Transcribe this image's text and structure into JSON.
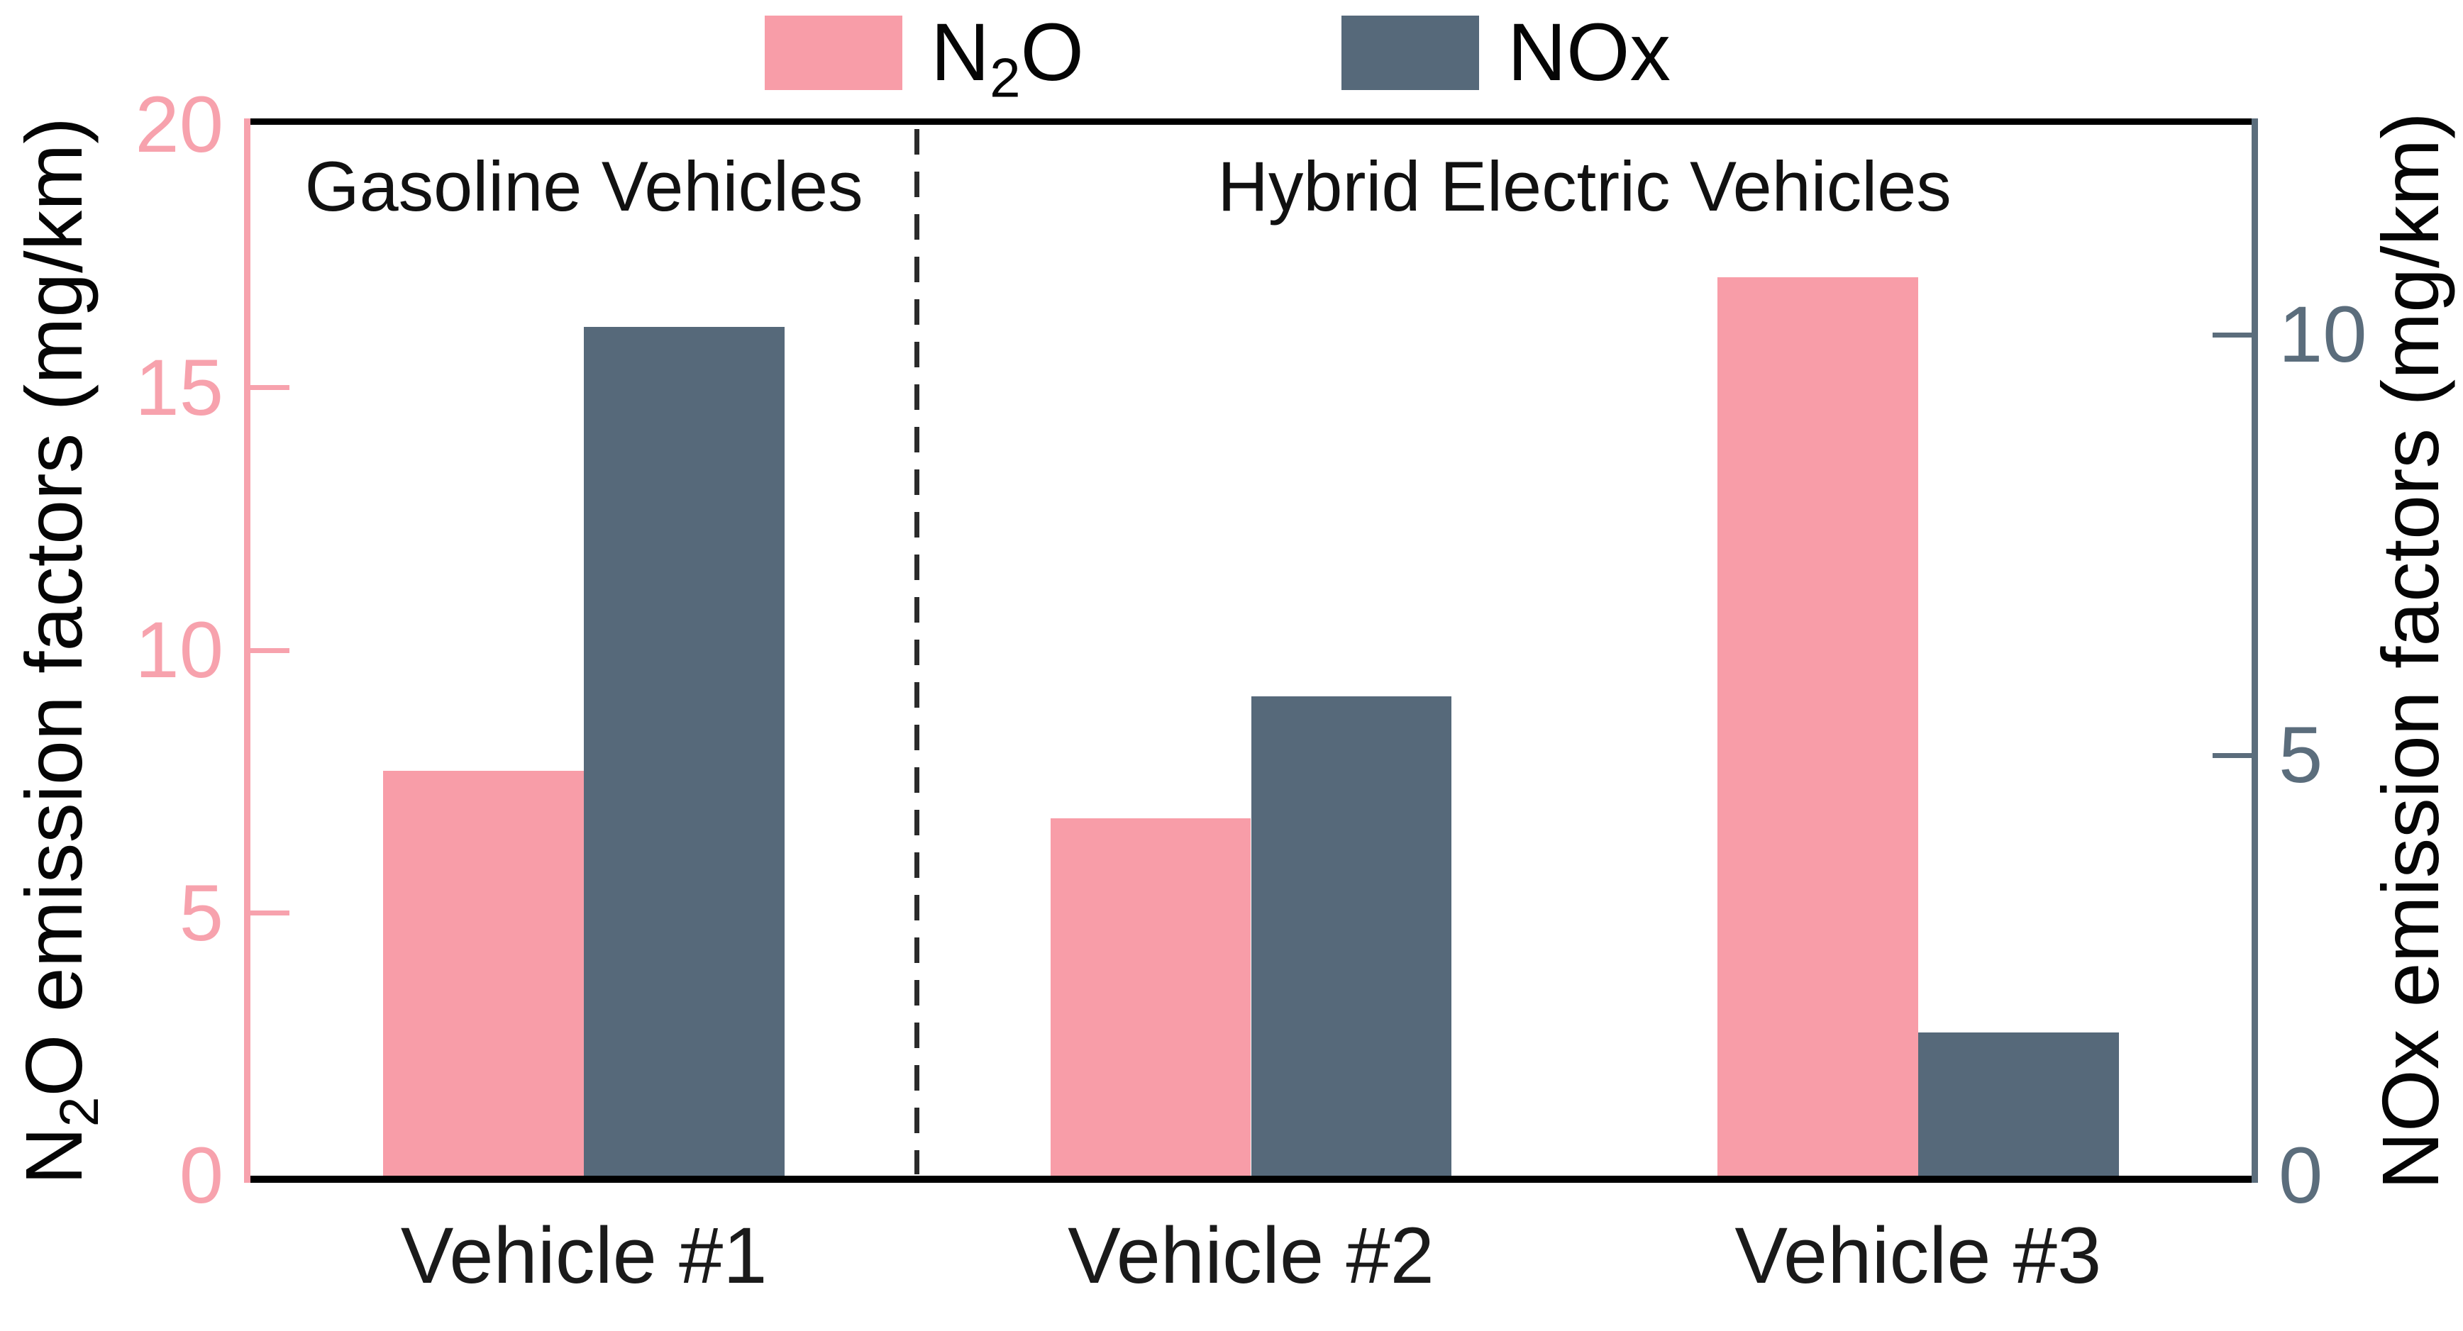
{
  "legend": {
    "n2o": {
      "pre": "N",
      "sub": "2",
      "post": "O"
    },
    "nox": {
      "label": "NOx"
    }
  },
  "colors": {
    "n2o_bar": "#F89DA8",
    "nox_bar": "#56697A",
    "left_axis": "#F7A2AD",
    "right_axis": "#5B6D7C",
    "spine_black": "#000000",
    "separator": "#2B2B2B"
  },
  "chart_data": {
    "type": "bar",
    "categories": [
      "Vehicle #1",
      "Vehicle #2",
      "Vehicle #3"
    ],
    "series": [
      {
        "name": "N2O",
        "axis": "left",
        "color": "#F89DA8",
        "values": [
          7.7,
          6.8,
          17.1
        ]
      },
      {
        "name": "NOx",
        "axis": "right",
        "color": "#56697A",
        "values": [
          10.1,
          5.7,
          1.7
        ]
      }
    ],
    "left_axis": {
      "label": "N2O emission factors (mg/km)",
      "label_pre": "N",
      "label_sub": "2",
      "label_post": "O emission factors (mg/km)",
      "range": [
        0,
        20
      ],
      "ticks": [
        0,
        5,
        10,
        15,
        20
      ],
      "color": "#F7A2AD"
    },
    "right_axis": {
      "label": "NOx emission factors (mg/km)",
      "range": [
        0,
        12.5
      ],
      "ticks": [
        0,
        5,
        10
      ],
      "color": "#5B6D7C"
    },
    "sections": [
      {
        "label": "Gasoline Vehicles",
        "span": [
          0,
          0.3333
        ]
      },
      {
        "label": "Hybrid Electric Vehicles",
        "span": [
          0.3333,
          1
        ]
      }
    ],
    "separator_frac": 0.3333,
    "bar_width_frac": 0.1003,
    "grid": false,
    "legend_position": "top"
  }
}
